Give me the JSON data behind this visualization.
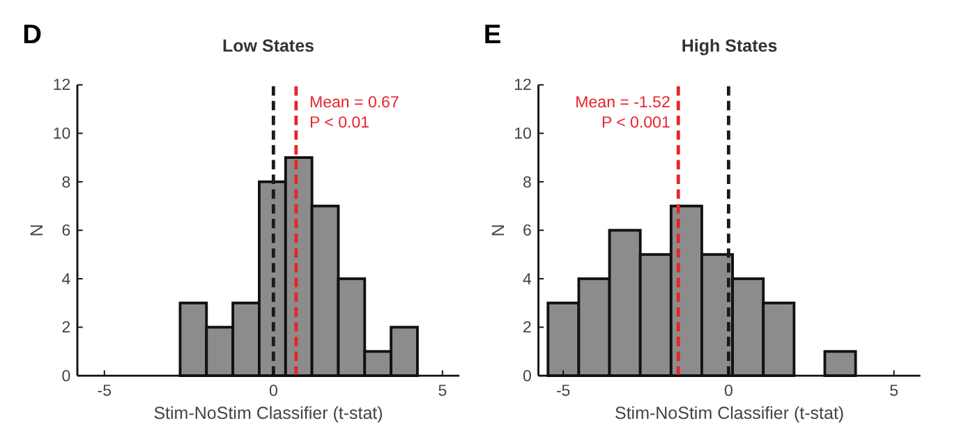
{
  "chart_data": [
    {
      "type": "histogram",
      "title": "Low States",
      "xlabel": "Stim-NoStim Classifier (t-stat)",
      "ylabel": "N",
      "color": "#8c8c8c",
      "bins": [
        -2.76,
        -1.98,
        -1.2,
        -0.42,
        0.36,
        1.14,
        1.92,
        2.7,
        3.48,
        4.26
      ],
      "values": [
        3,
        2,
        3,
        8,
        9,
        7,
        4,
        1,
        2
      ],
      "xlim": [
        -5.8,
        5.5
      ],
      "ylim": [
        0,
        12
      ],
      "xticks": [
        -5,
        0,
        5
      ],
      "yticks": [
        0,
        2,
        4,
        6,
        8,
        10,
        12
      ],
      "grid": false,
      "ref_lines": [
        {
          "axis": "x",
          "value": 0,
          "color": "#1a1a1a",
          "line_style": "dashed"
        },
        {
          "axis": "x",
          "value": 0.67,
          "label": "Mean = 0.67",
          "color": "#e8242b",
          "line_style": "dashed"
        }
      ],
      "annotations": [
        "D",
        "P < 0.01"
      ]
    },
    {
      "type": "histogram",
      "title": "High States",
      "xlabel": "Stim-NoStim Classifier (t-stat)",
      "ylabel": "N",
      "color": "#8c8c8c",
      "bins": [
        -5.46,
        -4.53,
        -3.6,
        -2.67,
        -1.74,
        -0.81,
        0.12,
        1.05,
        1.98,
        2.91,
        3.84
      ],
      "values": [
        3,
        4,
        6,
        5,
        7,
        5,
        4,
        3,
        0,
        1
      ],
      "xlim": [
        -5.75,
        5.8
      ],
      "ylim": [
        0,
        12
      ],
      "xticks": [
        -5,
        0,
        5
      ],
      "yticks": [
        0,
        2,
        4,
        6,
        8,
        10,
        12
      ],
      "grid": false,
      "ref_lines": [
        {
          "axis": "x",
          "value": -1.52,
          "label": "Mean = -1.52",
          "color": "#e8242b",
          "line_style": "dashed"
        },
        {
          "axis": "x",
          "value": 0,
          "color": "#1a1a1a",
          "line_style": "dashed"
        }
      ],
      "annotations": [
        "E",
        "P < 0.001"
      ]
    }
  ]
}
